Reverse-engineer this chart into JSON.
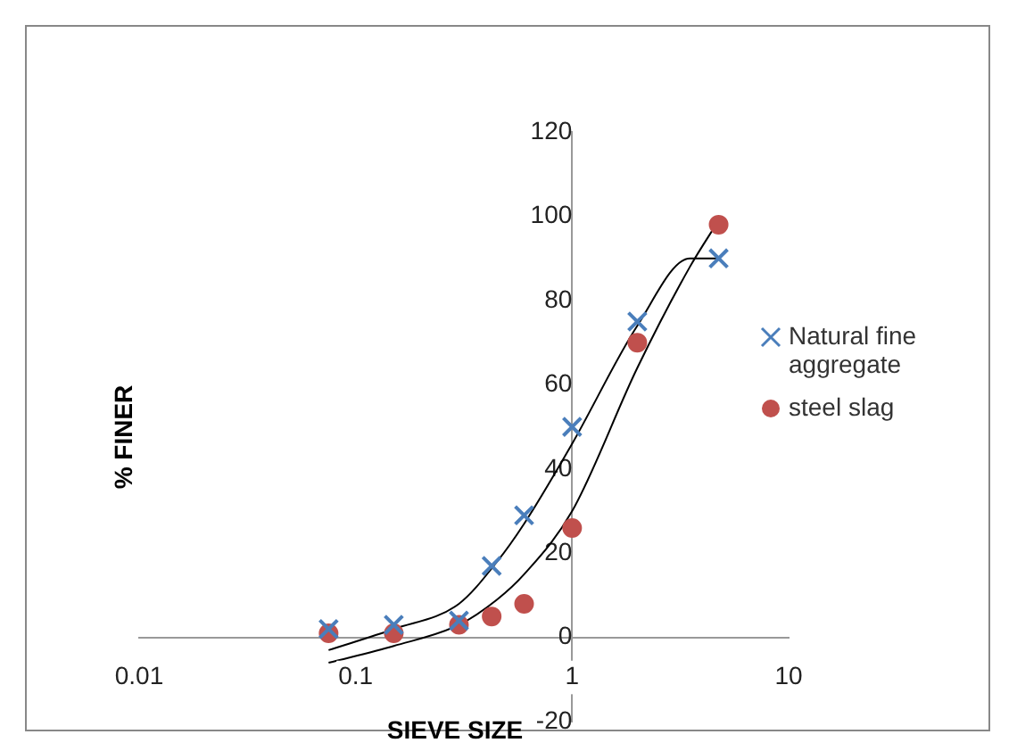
{
  "chart_data": {
    "type": "scatter",
    "xlabel": "SIEVE SIZE",
    "ylabel": "% FINER",
    "log": "x",
    "xlim": [
      0.01,
      10
    ],
    "xticks": [
      0.01,
      0.1,
      1,
      10
    ],
    "ylim": [
      -20,
      120
    ],
    "yticks": [
      -20,
      0,
      20,
      40,
      60,
      80,
      100,
      120
    ],
    "grid": false,
    "legend": "right",
    "x": [
      0.075,
      0.15,
      0.3,
      0.425,
      0.6,
      1,
      2,
      4.75
    ],
    "series": [
      {
        "name": "Natural fine aggregate",
        "color": "#4a7ebb",
        "marker": "cross",
        "values": [
          2,
          3,
          4,
          17,
          29,
          50,
          75,
          90
        ]
      },
      {
        "name": "steel slag",
        "color": "#c0504d",
        "marker": "circle",
        "values": [
          1,
          1,
          3,
          5,
          8,
          26,
          70,
          98
        ]
      },
      {
        "type": "line",
        "color": "#000000",
        "marker": "none",
        "x": [
          0.075,
          0.15,
          0.3,
          0.45,
          0.6,
          1,
          2,
          3.5,
          4.75
        ],
        "values": [
          -3,
          2,
          8,
          18,
          27,
          46,
          74,
          90,
          90
        ]
      },
      {
        "type": "line",
        "color": "#000000",
        "marker": "none",
        "x": [
          0.075,
          0.15,
          0.3,
          0.45,
          0.6,
          1,
          2,
          3.5,
          4.75
        ],
        "values": [
          -6,
          -2,
          3,
          9,
          15,
          30,
          64,
          88,
          99
        ]
      }
    ]
  }
}
